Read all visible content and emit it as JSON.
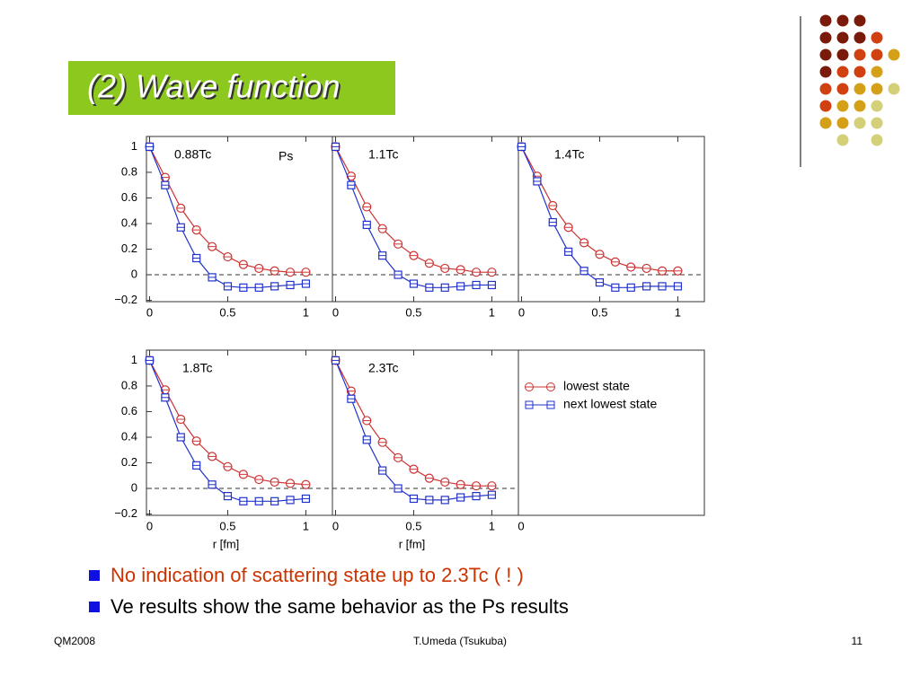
{
  "slide": {
    "title": "(2) Wave function",
    "bullets": [
      {
        "text": "No indication of scattering state up to 2.3Tc ( ! )",
        "color": "#cc3300"
      },
      {
        "text": "Ve results show the same behavior as the Ps results",
        "color": "#000000"
      }
    ],
    "footer": {
      "left": "QM2008",
      "center": "T.Umeda (Tsukuba)",
      "right": "11"
    }
  },
  "legend_panel": {
    "xtick": "0"
  },
  "chart_data": [
    {
      "type": "line",
      "label": "0.88Tc",
      "annotation": "Ps",
      "x": [
        0,
        0.1,
        0.2,
        0.3,
        0.4,
        0.5,
        0.6,
        0.7,
        0.8,
        0.9,
        1.0
      ],
      "series": [
        {
          "name": "lowest state",
          "color": "#cc3333",
          "marker": "circle",
          "values": [
            1,
            0.76,
            0.52,
            0.35,
            0.22,
            0.14,
            0.08,
            0.05,
            0.03,
            0.02,
            0.02
          ]
        },
        {
          "name": "next lowest state",
          "color": "#2233cc",
          "marker": "square",
          "values": [
            1,
            0.7,
            0.37,
            0.13,
            -0.02,
            -0.09,
            -0.1,
            -0.1,
            -0.09,
            -0.08,
            -0.07
          ]
        }
      ],
      "xlim": [
        -0.02,
        1.17
      ],
      "ylim": [
        -0.21,
        1.08
      ],
      "xticks": [
        0,
        0.5,
        1
      ],
      "yticks": [
        {
          "value": -0.2,
          "label": "−0.2"
        },
        0,
        0.2,
        0.4,
        0.6,
        0.8,
        1
      ],
      "zero_line": true
    },
    {
      "type": "line",
      "label": "1.1Tc",
      "x": [
        0,
        0.1,
        0.2,
        0.3,
        0.4,
        0.5,
        0.6,
        0.7,
        0.8,
        0.9,
        1.0
      ],
      "series": [
        {
          "color": "#cc3333",
          "marker": "circle",
          "values": [
            1,
            0.77,
            0.53,
            0.36,
            0.24,
            0.15,
            0.09,
            0.05,
            0.04,
            0.02,
            0.02
          ]
        },
        {
          "color": "#2233cc",
          "marker": "square",
          "values": [
            1,
            0.7,
            0.39,
            0.15,
            0.0,
            -0.07,
            -0.1,
            -0.1,
            -0.09,
            -0.08,
            -0.08
          ]
        }
      ],
      "xlim": [
        -0.02,
        1.17
      ],
      "ylim": [
        -0.21,
        1.08
      ],
      "xticks": [
        0,
        0.5,
        1
      ],
      "zero_line": true
    },
    {
      "type": "line",
      "label": "1.4Tc",
      "x": [
        0,
        0.1,
        0.2,
        0.3,
        0.4,
        0.5,
        0.6,
        0.7,
        0.8,
        0.9,
        1.0
      ],
      "series": [
        {
          "color": "#cc3333",
          "marker": "circle",
          "values": [
            1,
            0.77,
            0.54,
            0.37,
            0.25,
            0.16,
            0.1,
            0.06,
            0.05,
            0.03,
            0.03
          ]
        },
        {
          "color": "#2233cc",
          "marker": "square",
          "values": [
            1,
            0.73,
            0.41,
            0.18,
            0.03,
            -0.06,
            -0.1,
            -0.1,
            -0.09,
            -0.09,
            -0.09
          ]
        }
      ],
      "xlim": [
        -0.02,
        1.17
      ],
      "ylim": [
        -0.21,
        1.08
      ],
      "xticks": [
        0,
        0.5,
        1
      ],
      "zero_line": true
    },
    {
      "type": "line",
      "label": "1.8Tc",
      "xlabel": "r [fm]",
      "x": [
        0,
        0.1,
        0.2,
        0.3,
        0.4,
        0.5,
        0.6,
        0.7,
        0.8,
        0.9,
        1.0
      ],
      "series": [
        {
          "color": "#cc3333",
          "marker": "circle",
          "values": [
            1,
            0.77,
            0.54,
            0.37,
            0.25,
            0.17,
            0.11,
            0.07,
            0.05,
            0.04,
            0.03
          ]
        },
        {
          "color": "#2233cc",
          "marker": "square",
          "values": [
            1,
            0.71,
            0.4,
            0.18,
            0.03,
            -0.06,
            -0.1,
            -0.1,
            -0.1,
            -0.09,
            -0.08
          ]
        }
      ],
      "xlim": [
        -0.02,
        1.17
      ],
      "ylim": [
        -0.21,
        1.08
      ],
      "xticks": [
        0,
        0.5,
        1
      ],
      "yticks": [
        {
          "value": -0.2,
          "label": "−0.2"
        },
        0,
        0.2,
        0.4,
        0.6,
        0.8,
        1
      ],
      "zero_line": true
    },
    {
      "type": "line",
      "label": "2.3Tc",
      "xlabel": "r [fm]",
      "x": [
        0,
        0.1,
        0.2,
        0.3,
        0.4,
        0.5,
        0.6,
        0.7,
        0.8,
        0.9,
        1.0
      ],
      "series": [
        {
          "color": "#cc3333",
          "marker": "circle",
          "values": [
            1,
            0.76,
            0.53,
            0.36,
            0.24,
            0.15,
            0.08,
            0.05,
            0.03,
            0.02,
            0.02
          ]
        },
        {
          "color": "#2233cc",
          "marker": "square",
          "values": [
            1,
            0.7,
            0.38,
            0.14,
            0.0,
            -0.08,
            -0.09,
            -0.09,
            -0.07,
            -0.06,
            -0.05
          ]
        }
      ],
      "xlim": [
        -0.02,
        1.17
      ],
      "ylim": [
        -0.21,
        1.08
      ],
      "xticks": [
        0,
        0.5,
        1
      ],
      "zero_line": true
    }
  ]
}
